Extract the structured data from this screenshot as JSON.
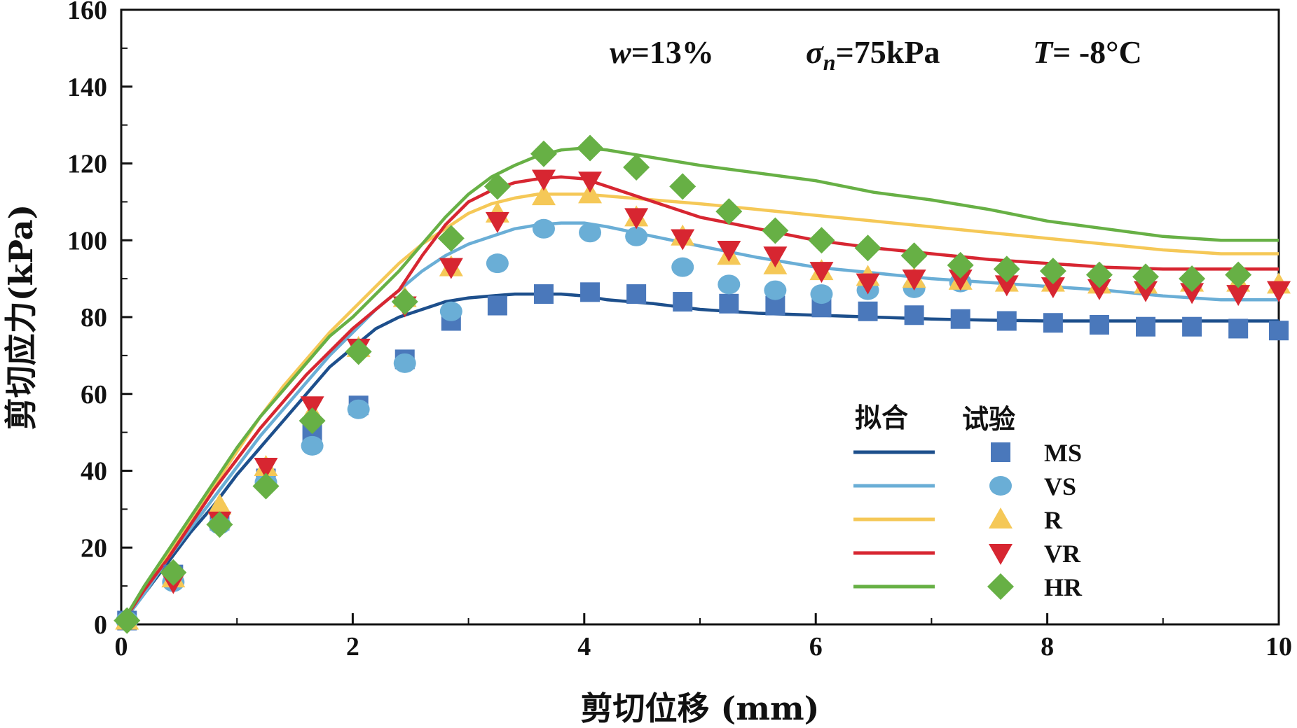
{
  "chart_data": {
    "type": "line+scatter",
    "xlabel": "剪切位移 (mm)",
    "ylabel": "剪切应力(kPa)",
    "xlim": [
      0,
      10
    ],
    "ylim": [
      0,
      160
    ],
    "xticks": [
      "0",
      "2",
      "4",
      "6",
      "8",
      "10"
    ],
    "yticks": [
      "0",
      "20",
      "40",
      "60",
      "80",
      "100",
      "120",
      "140",
      "160"
    ],
    "conditions": {
      "w_label": "w",
      "w_value": "=13%",
      "sigma_label": "σ",
      "sigma_sub": "n",
      "sigma_value": "=75kPa",
      "t_label": "T",
      "t_value": "= -8°C"
    },
    "legend": {
      "fit_header": "拟合",
      "test_header": "试验",
      "position": "lower-right"
    },
    "series": [
      {
        "name": "MS",
        "color": "#1d4f8c",
        "marker_color": "#4a78bb",
        "marker": "square",
        "fit": {
          "x": [
            0,
            0.2,
            0.4,
            0.6,
            0.8,
            1.0,
            1.2,
            1.4,
            1.6,
            1.8,
            2.0,
            2.2,
            2.4,
            2.6,
            2.8,
            3.0,
            3.2,
            3.4,
            3.6,
            3.8,
            4.0,
            4.2,
            4.6,
            5.0,
            5.5,
            6.0,
            6.5,
            7.0,
            7.5,
            8.0,
            8.5,
            9.0,
            9.5,
            10.0
          ],
          "y": [
            0,
            8,
            16,
            24,
            31,
            39,
            46,
            53,
            60,
            67,
            72,
            77,
            80,
            82,
            84,
            85,
            85.5,
            86,
            86,
            86,
            85.5,
            84.5,
            83.5,
            82,
            81,
            80.5,
            80,
            79.5,
            79.2,
            79,
            79,
            79,
            79,
            79
          ]
        },
        "test": {
          "x": [
            0.05,
            0.45,
            0.85,
            1.25,
            1.65,
            2.05,
            2.45,
            2.85,
            3.25,
            3.65,
            4.05,
            4.45,
            4.85,
            5.25,
            5.65,
            6.05,
            6.45,
            6.85,
            7.25,
            7.65,
            8.05,
            8.45,
            8.85,
            9.25,
            9.65,
            10.0
          ],
          "y": [
            1,
            13,
            27,
            38,
            50,
            57,
            69,
            79,
            83,
            86,
            86.5,
            86,
            84,
            83.5,
            83,
            82.5,
            81.5,
            80.5,
            79.5,
            79,
            78.5,
            78,
            77.5,
            77.5,
            77,
            76.5
          ]
        }
      },
      {
        "name": "VS",
        "color": "#6aaed6",
        "marker_color": "#6aaed6",
        "marker": "circle",
        "fit": {
          "x": [
            0,
            0.2,
            0.4,
            0.6,
            0.8,
            1.0,
            1.2,
            1.4,
            1.6,
            1.8,
            2.0,
            2.2,
            2.4,
            2.6,
            2.8,
            3.0,
            3.2,
            3.4,
            3.6,
            3.8,
            4.0,
            4.2,
            4.6,
            5.0,
            5.5,
            6.0,
            6.5,
            7.0,
            7.5,
            8.0,
            8.5,
            9.0,
            9.5,
            10.0
          ],
          "y": [
            0,
            8,
            17,
            25,
            33,
            41,
            49,
            56,
            63,
            70,
            76,
            82,
            87,
            92,
            96,
            99,
            101,
            103,
            104,
            104.5,
            104.5,
            103.5,
            101,
            98.5,
            95.5,
            93,
            91.5,
            90,
            89,
            88,
            87,
            85.5,
            84.5,
            84.5
          ]
        },
        "test": {
          "x": [
            0.05,
            0.45,
            0.85,
            1.25,
            1.65,
            2.05,
            2.45,
            2.85,
            3.25,
            3.65,
            4.05,
            4.45,
            4.85,
            5.25,
            5.65,
            6.05,
            6.45,
            6.85,
            7.25
          ],
          "y": [
            1,
            11,
            26,
            37,
            46.5,
            56,
            68,
            81.5,
            94,
            103,
            102,
            101,
            93,
            88.5,
            87,
            86,
            87,
            87.5,
            89
          ]
        }
      },
      {
        "name": "R",
        "color": "#f5c857",
        "marker_color": "#f5c857",
        "marker": "triangle-up",
        "fit": {
          "x": [
            0,
            0.2,
            0.4,
            0.6,
            0.8,
            1.0,
            1.2,
            1.4,
            1.6,
            1.8,
            2.0,
            2.2,
            2.4,
            2.6,
            2.8,
            3.0,
            3.2,
            3.4,
            3.6,
            3.8,
            4.0,
            4.2,
            4.6,
            5.0,
            5.5,
            6.0,
            6.5,
            7.0,
            7.5,
            8.0,
            8.5,
            9.0,
            9.5,
            10.0
          ],
          "y": [
            0,
            9,
            18,
            27,
            36,
            45,
            54,
            62,
            69,
            76,
            82,
            88,
            94,
            99,
            103,
            107,
            109.5,
            111,
            112,
            112,
            112,
            111.5,
            110.5,
            109.5,
            108,
            106.5,
            105,
            103.5,
            102,
            100.5,
            99,
            97.5,
            96.5,
            96.5
          ]
        },
        "test": {
          "x": [
            0.05,
            0.45,
            0.85,
            1.25,
            1.65,
            2.05,
            2.45,
            2.85,
            3.25,
            3.65,
            4.05,
            4.45,
            4.85,
            5.25,
            5.65,
            6.05,
            6.45,
            6.85,
            7.25,
            7.65,
            8.05,
            8.45,
            8.85,
            9.25,
            9.65,
            10.0
          ],
          "y": [
            1,
            12,
            31,
            41,
            55,
            72,
            85,
            93,
            107,
            111.5,
            112,
            106,
            101,
            96,
            93.5,
            92,
            90.5,
            90,
            89.5,
            89,
            89,
            88.5,
            88.5,
            89,
            89,
            88.5
          ]
        }
      },
      {
        "name": "VR",
        "color": "#d72631",
        "marker_color": "#d72631",
        "marker": "triangle-down",
        "fit": {
          "x": [
            0,
            0.2,
            0.4,
            0.6,
            0.8,
            1.0,
            1.2,
            1.4,
            1.6,
            1.8,
            2.0,
            2.2,
            2.4,
            2.6,
            2.8,
            3.0,
            3.2,
            3.4,
            3.6,
            3.8,
            4.0,
            4.2,
            4.6,
            5.0,
            5.5,
            6.0,
            6.5,
            7.0,
            7.5,
            8.0,
            8.5,
            9.0,
            9.5,
            10.0
          ],
          "y": [
            0,
            9,
            17,
            26,
            35,
            43,
            51,
            58,
            65,
            71,
            77,
            82,
            87,
            96,
            104,
            110,
            113,
            115,
            116,
            116.5,
            116,
            114,
            110,
            106,
            103,
            100,
            98,
            96.5,
            95,
            94,
            93,
            92.5,
            92.5,
            92.5
          ]
        },
        "test": {
          "x": [
            0.45,
            0.85,
            1.25,
            1.65,
            2.05,
            2.45,
            2.85,
            3.25,
            3.65,
            4.05,
            4.45,
            4.85,
            5.25,
            5.65,
            6.05,
            6.45,
            6.85,
            7.25,
            7.65,
            8.05,
            8.45,
            8.85,
            9.25,
            9.65,
            10.0
          ],
          "y": [
            11,
            27,
            41,
            57,
            72,
            83,
            93,
            105,
            116,
            115.5,
            106,
            100.5,
            97.5,
            96,
            92,
            89,
            90,
            90,
            88.5,
            88,
            87.5,
            87,
            86.5,
            86,
            87
          ]
        }
      },
      {
        "name": "HR",
        "color": "#67b045",
        "marker_color": "#67b045",
        "marker": "diamond",
        "fit": {
          "x": [
            0,
            0.2,
            0.4,
            0.6,
            0.8,
            1.0,
            1.2,
            1.4,
            1.6,
            1.8,
            2.0,
            2.2,
            2.4,
            2.6,
            2.8,
            3.0,
            3.2,
            3.4,
            3.6,
            3.8,
            4.0,
            4.2,
            4.6,
            5.0,
            5.5,
            6.0,
            6.5,
            7.0,
            7.5,
            8.0,
            8.5,
            9.0,
            9.5,
            10.0
          ],
          "y": [
            0,
            10,
            19,
            28,
            37,
            46,
            54,
            61,
            68,
            75,
            80,
            86,
            92,
            99,
            106,
            112,
            116.5,
            119.5,
            122,
            123.5,
            124,
            123.5,
            121.5,
            119.5,
            117.5,
            115.5,
            112.5,
            110.5,
            108,
            105,
            103,
            101,
            100,
            100
          ]
        },
        "test": {
          "x": [
            0.05,
            0.45,
            0.85,
            1.25,
            1.65,
            2.05,
            2.45,
            2.85,
            3.25,
            3.65,
            4.05,
            4.45,
            4.85,
            5.25,
            5.65,
            6.05,
            6.45,
            6.85,
            7.25,
            7.65,
            8.05,
            8.45,
            8.85,
            9.25,
            9.65
          ],
          "y": [
            1,
            13.5,
            26,
            36,
            53,
            71,
            84,
            100.5,
            114,
            122.5,
            124,
            119,
            114,
            107.5,
            102.5,
            100,
            98,
            96,
            93.5,
            92.5,
            92,
            91,
            90.5,
            90,
            91
          ]
        }
      }
    ]
  }
}
